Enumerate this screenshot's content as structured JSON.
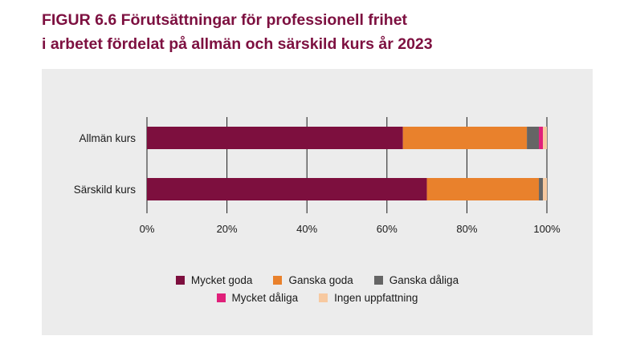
{
  "title": {
    "line1": "FIGUR 6.6 Förutsättningar för professionell frihet",
    "line2": "i arbetet fördelat på allmän och särskild kurs år 2023"
  },
  "chart_data": {
    "type": "bar",
    "orientation": "horizontal",
    "stacked": true,
    "categories": [
      "Allmän kurs",
      "Särskild kurs"
    ],
    "series": [
      {
        "name": "Mycket goda",
        "color": "#7d0f3e",
        "values": [
          64,
          70
        ]
      },
      {
        "name": "Ganska goda",
        "color": "#e9812c",
        "values": [
          31,
          28
        ]
      },
      {
        "name": "Ganska dåliga",
        "color": "#656565",
        "values": [
          3,
          1
        ]
      },
      {
        "name": "Mycket dåliga",
        "color": "#e0207a",
        "values": [
          1,
          0
        ]
      },
      {
        "name": "Ingen uppfattning",
        "color": "#f7c9a0",
        "values": [
          1,
          1
        ]
      }
    ],
    "xlim": [
      0,
      100
    ],
    "xticks": [
      "0%",
      "20%",
      "40%",
      "60%",
      "80%",
      "100%"
    ],
    "xlabel": "",
    "ylabel": "",
    "grid": true,
    "legend_position": "bottom"
  }
}
